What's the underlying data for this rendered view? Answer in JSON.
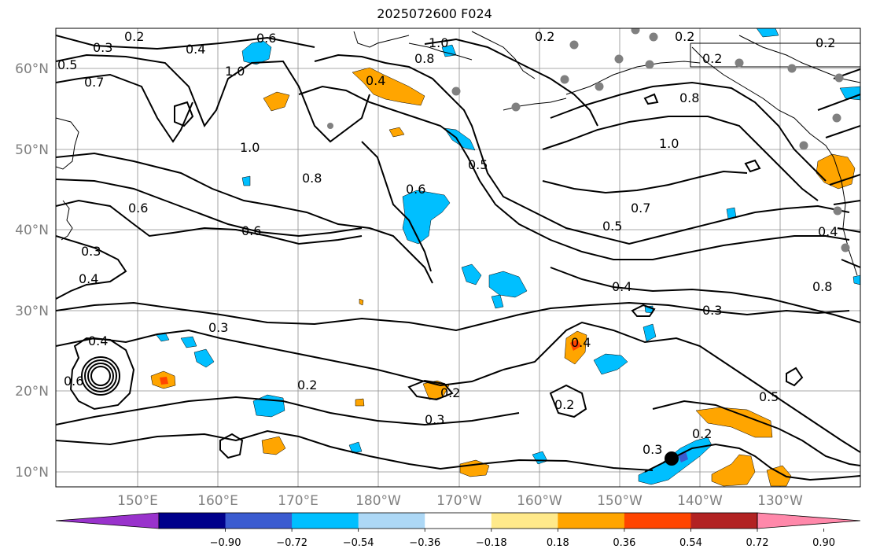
{
  "title": "2025072600 F024",
  "latitude_labels": [
    "10°N",
    "20°N",
    "30°N",
    "40°N",
    "50°N",
    "60°N"
  ],
  "longitude_labels": [
    "150°E",
    "160°E",
    "170°E",
    "180°W",
    "170°W",
    "160°W",
    "150°W",
    "140°W",
    "130°W"
  ],
  "colorbar": {
    "colors": [
      "#9932cc",
      "#00008b",
      "#3a5bd0",
      "#00bfff",
      "#add8f6",
      "#ffffff",
      "#ffe98a",
      "#ffa500",
      "#ff4500",
      "#b22222",
      "#ff88aa"
    ],
    "tick_labels": [
      "−0.90",
      "−0.72",
      "−0.54",
      "−0.36",
      "−0.18",
      "0.18",
      "0.36",
      "0.54",
      "0.72",
      "0.90"
    ]
  },
  "contour_labels": [
    "0.2",
    "0.3",
    "0.4",
    "0.5",
    "0.6",
    "0.7",
    "0.8",
    "1.0"
  ],
  "colors": {
    "positive_fill": "#ffa500",
    "positive_strong": "#ff4500",
    "negative_fill": "#00bfff",
    "grid": "#8c8c8c",
    "stations": "#808080",
    "marker": "#000000"
  }
}
